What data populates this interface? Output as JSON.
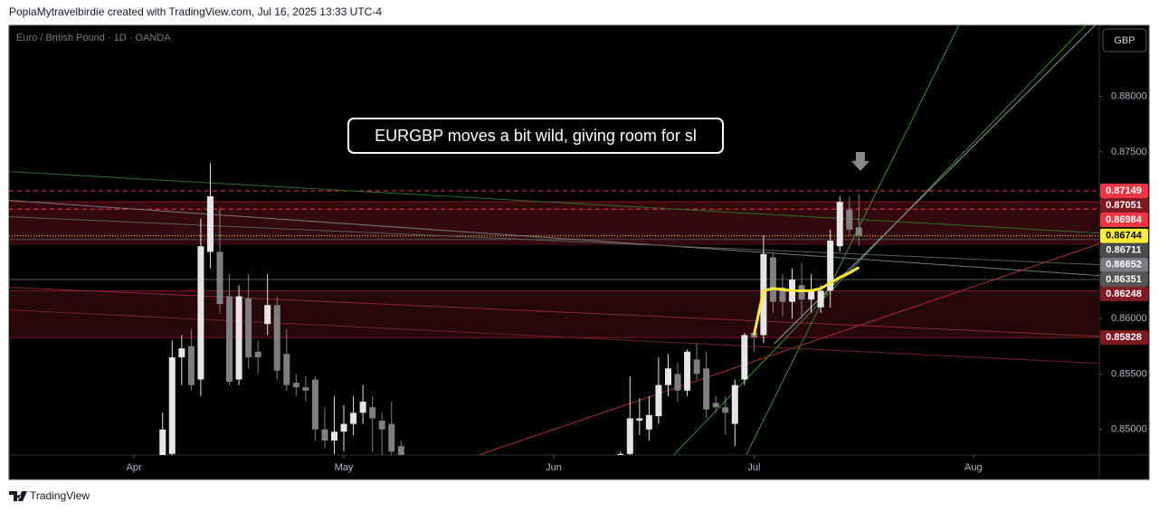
{
  "header": {
    "credit": "PopiaMytravelbirdie created with TradingView.com, Jul 16, 2025 13:33 UTC-4",
    "symbol": "Euro / British Pound · 1D · OANDA"
  },
  "currency_button": "GBP",
  "footer": "TradingView",
  "chart_data": {
    "type": "candlestick",
    "annotation": "EURGBP moves a bit wild, giving room for sl",
    "xlim": [
      -13.1,
      101.2
    ],
    "xticks": [
      {
        "value": 0,
        "label": "Apr"
      },
      {
        "value": 22,
        "label": "May"
      },
      {
        "value": 44,
        "label": "Jun"
      },
      {
        "value": 65,
        "label": "Jul"
      },
      {
        "value": 88,
        "label": "Aug"
      }
    ],
    "ylim": [
      0.8477,
      0.8864
    ],
    "yticks": [
      {
        "value": 0.85,
        "label": "0.85000"
      },
      {
        "value": 0.855,
        "label": "0.85500"
      },
      {
        "value": 0.86,
        "label": "0.86000"
      },
      {
        "value": 0.875,
        "label": "0.87500"
      },
      {
        "value": 0.88,
        "label": "0.88000"
      }
    ],
    "grid": false,
    "up_color": "#e6e6e6",
    "down_color": "#7f7f7f",
    "x": [
      3,
      4,
      5,
      6,
      7,
      8,
      9,
      10,
      11,
      12,
      13,
      14,
      15,
      16,
      17,
      18,
      19,
      20,
      21,
      22,
      23,
      24,
      25,
      26,
      27,
      28,
      51,
      52,
      53,
      54,
      55,
      56,
      57,
      58,
      59,
      60,
      61,
      62,
      63,
      64,
      65,
      66,
      67,
      68,
      69,
      70,
      71,
      72,
      73,
      74,
      75,
      76
    ],
    "open": [
      0.8475,
      0.8478,
      0.8565,
      0.8575,
      0.8545,
      0.866,
      0.866,
      0.862,
      0.8545,
      0.8618,
      0.857,
      0.8595,
      0.8612,
      0.8568,
      0.8542,
      0.8538,
      0.8545,
      0.85,
      0.849,
      0.8498,
      0.8505,
      0.8515,
      0.852,
      0.8508,
      0.8505,
      0.8485,
      0.847,
      0.8478,
      0.8508,
      0.85,
      0.8512,
      0.854,
      0.855,
      0.8535,
      0.8563,
      0.8555,
      0.8524,
      0.852,
      0.8505,
      0.8545,
      0.8587,
      0.8585,
      0.8655,
      0.8628,
      0.8615,
      0.863,
      0.8617,
      0.861,
      0.8625,
      0.8665,
      0.8698,
      0.8682
    ],
    "high": [
      0.8515,
      0.858,
      0.8585,
      0.859,
      0.869,
      0.874,
      0.87,
      0.864,
      0.863,
      0.864,
      0.858,
      0.864,
      0.862,
      0.859,
      0.855,
      0.8548,
      0.8548,
      0.852,
      0.853,
      0.8522,
      0.853,
      0.854,
      0.853,
      0.8515,
      0.8525,
      0.849,
      0.848,
      0.8548,
      0.8528,
      0.853,
      0.8565,
      0.8568,
      0.856,
      0.8572,
      0.8578,
      0.857,
      0.853,
      0.853,
      0.8545,
      0.8587,
      0.859,
      0.8675,
      0.866,
      0.864,
      0.8645,
      0.865,
      0.864,
      0.863,
      0.868,
      0.871,
      0.871,
      0.8712
    ],
    "low": [
      0.847,
      0.8476,
      0.854,
      0.8535,
      0.853,
      0.8645,
      0.8605,
      0.854,
      0.854,
      0.8555,
      0.855,
      0.8585,
      0.8545,
      0.8535,
      0.853,
      0.8525,
      0.849,
      0.8483,
      0.8478,
      0.848,
      0.8495,
      0.8505,
      0.848,
      0.8475,
      0.847,
      0.8465,
      0.8465,
      0.8475,
      0.8495,
      0.849,
      0.8505,
      0.853,
      0.8525,
      0.853,
      0.8545,
      0.851,
      0.8515,
      0.8495,
      0.8485,
      0.854,
      0.857,
      0.8578,
      0.8605,
      0.8602,
      0.86,
      0.86,
      0.8605,
      0.8605,
      0.861,
      0.866,
      0.8675,
      0.8665
    ],
    "close": [
      0.85,
      0.8565,
      0.8573,
      0.854,
      0.8665,
      0.871,
      0.8613,
      0.8543,
      0.862,
      0.8565,
      0.8565,
      0.8612,
      0.8553,
      0.854,
      0.8538,
      0.8535,
      0.85,
      0.849,
      0.8498,
      0.8505,
      0.8515,
      0.8525,
      0.851,
      0.85,
      0.848,
      0.847,
      0.8478,
      0.851,
      0.851,
      0.8513,
      0.854,
      0.8555,
      0.8535,
      0.857,
      0.855,
      0.8518,
      0.852,
      0.8515,
      0.854,
      0.8585,
      0.8583,
      0.8658,
      0.8615,
      0.8615,
      0.8635,
      0.8617,
      0.8625,
      0.8625,
      0.867,
      0.8705,
      0.868,
      0.86744
    ],
    "moving_average": {
      "color": "#ffeb3b",
      "x": [
        65,
        66,
        67,
        68,
        69,
        70,
        71,
        72,
        73,
        74,
        75,
        76
      ],
      "values": [
        0.8585,
        0.8625,
        0.8627,
        0.8626,
        0.8625,
        0.8625,
        0.8625,
        0.8627,
        0.8632,
        0.8637,
        0.8641,
        0.8646
      ]
    },
    "zones": [
      {
        "top": 0.87051,
        "bottom": 0.8666,
        "color": "#3a0a0e"
      },
      {
        "top": 0.86248,
        "bottom": 0.85828,
        "color": "#2a080b"
      }
    ],
    "trend_lines": [
      {
        "x": [
          -13.1,
          101.2
        ],
        "y": [
          0.87323,
          0.86769
        ],
        "color": "#2e6b2e"
      },
      {
        "x": [
          -13.1,
          101.2
        ],
        "y": [
          0.87063,
          0.86386
        ],
        "color": "#7a7a7a"
      },
      {
        "x": [
          -13.1,
          101.2
        ],
        "y": [
          0.86916,
          0.86484
        ],
        "color": "#5c5c5c"
      },
      {
        "x": [
          -13.1,
          101.2
        ],
        "y": [
          0.8628,
          0.8584
        ],
        "color": "#8a2a30"
      },
      {
        "x": [
          -13.1,
          101.2
        ],
        "y": [
          0.86077,
          0.85596
        ],
        "color": "#6e2228"
      },
      {
        "x": [
          36.2,
          101.2
        ],
        "y": [
          0.84772,
          0.86672
        ],
        "color": "#a3333b"
      },
      {
        "x": [
          64.2,
          86.5
        ],
        "y": [
          0.84772,
          0.88644
        ],
        "color": "#3f8a3f"
      },
      {
        "x": [
          56.6,
          99.8
        ],
        "y": [
          0.84772,
          0.88644
        ],
        "color": "#3f8a3f"
      },
      {
        "x": [
          67.1,
          100.8
        ],
        "y": [
          0.8577,
          0.88644
        ],
        "color": "#9a9a9a"
      }
    ],
    "levels": [
      {
        "value": 0.87149,
        "color": "#f23645",
        "text_color": "#ffffff",
        "style": "dashed"
      },
      {
        "value": 0.87051,
        "color": "#801922",
        "text_color": "#ffffff",
        "style": "solid"
      },
      {
        "value": 0.86984,
        "color": "#f23645",
        "text_color": "#ffffff",
        "style": "dashed"
      },
      {
        "value": 0.86744,
        "color": "#ffeb3b",
        "text_color": "#000000",
        "style": "dotted"
      },
      {
        "value": 0.86711,
        "color": "#4a4a4a",
        "text_color": "#ffffff",
        "style": "solid"
      },
      {
        "value": 0.86652,
        "color": "#787b86",
        "text_color": "#ffffff",
        "style": "none"
      },
      {
        "value": 0.86351,
        "color": "#555555",
        "text_color": "#ffffff",
        "style": "solid"
      },
      {
        "value": 0.86248,
        "color": "#801922",
        "text_color": "#ffffff",
        "style": "solid"
      },
      {
        "value": 0.85828,
        "color": "#801922",
        "text_color": "#ffffff",
        "style": "solid"
      }
    ]
  }
}
